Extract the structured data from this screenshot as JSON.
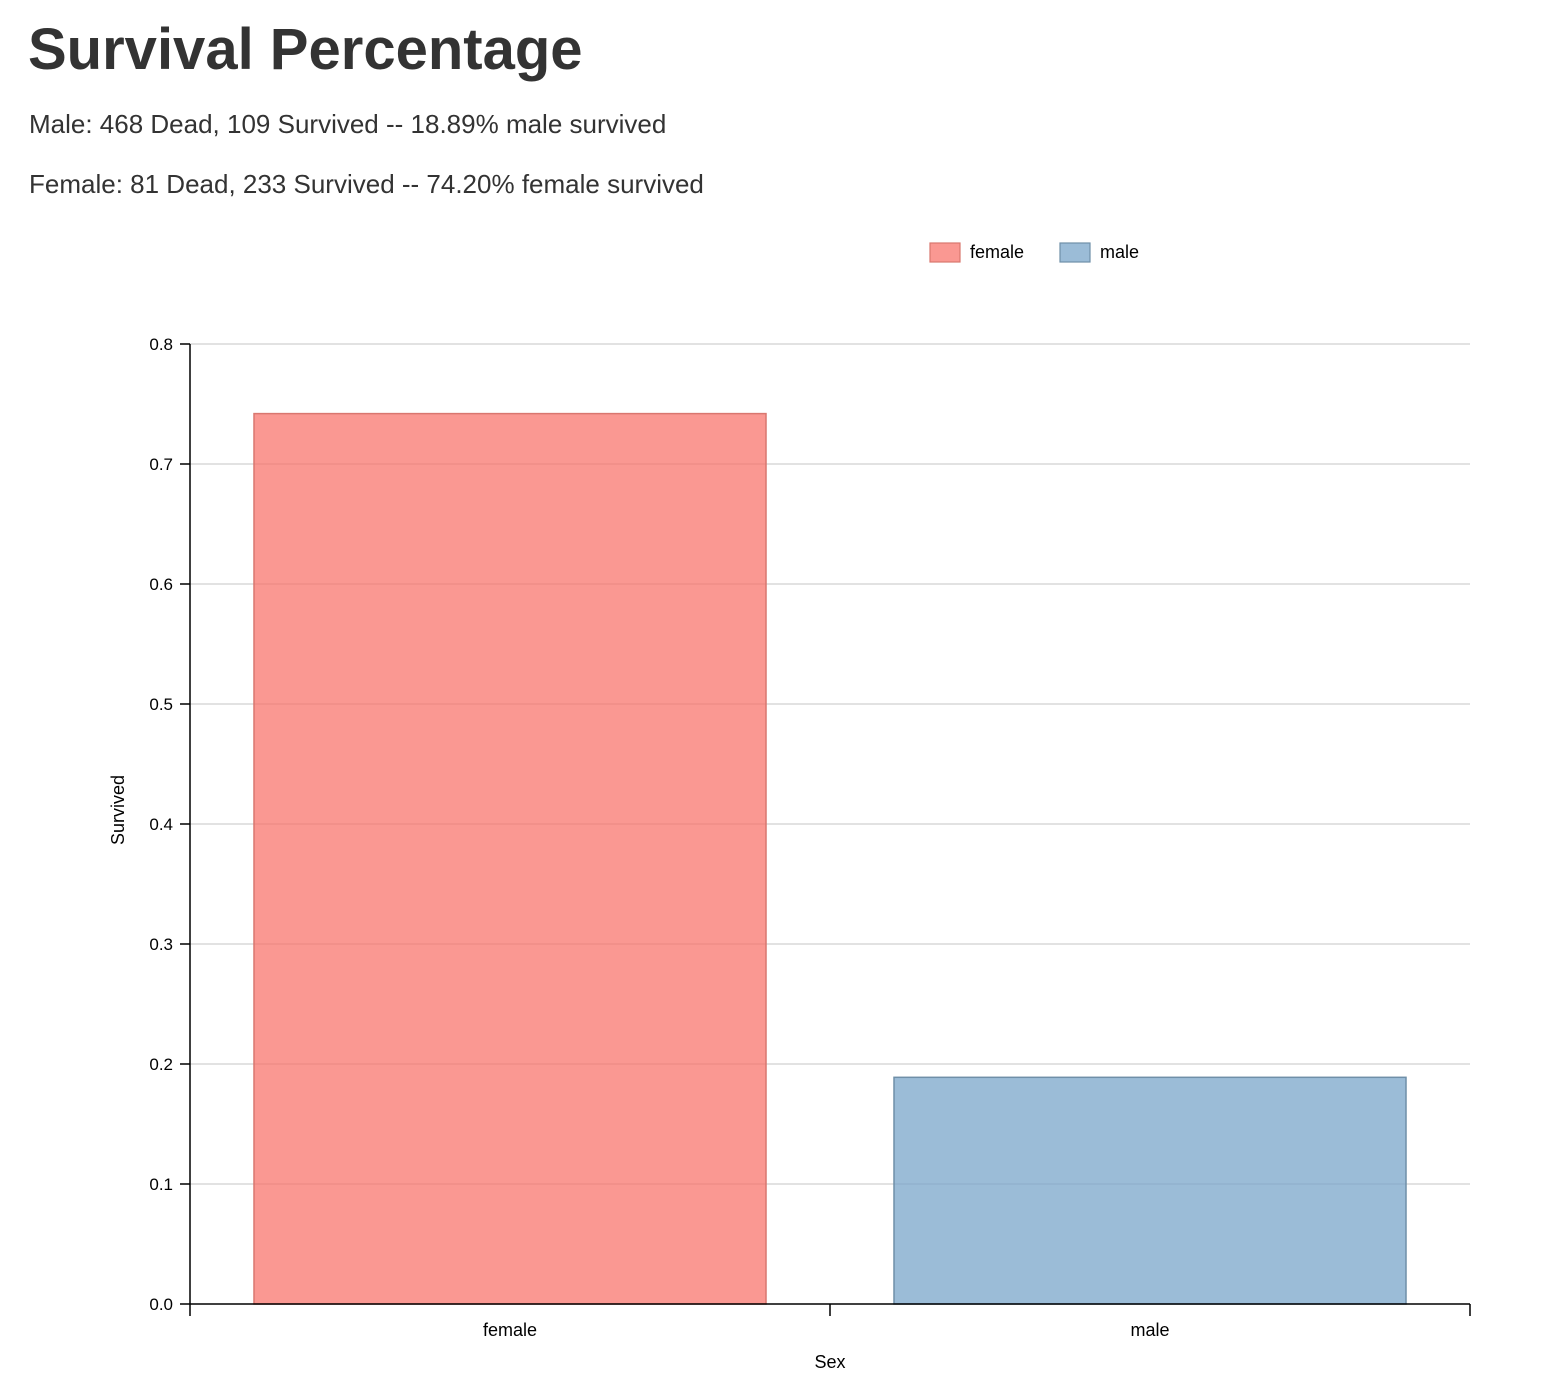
{
  "header": {
    "title": "Survival Percentage",
    "summary_male": "Male: 468 Dead, 109 Survived -- 18.89% male survived",
    "summary_female": "Female: 81 Dead, 233 Survived -- 74.20% female survived"
  },
  "chart_data": {
    "type": "bar",
    "categories": [
      "female",
      "male"
    ],
    "values": [
      0.742,
      0.1889
    ],
    "colors": [
      "#f8766d",
      "#7aa6c9"
    ],
    "stroke_colors": [
      "#d9776f",
      "#6f8fa8"
    ],
    "xlabel": "Sex",
    "ylabel": "Survived",
    "ylim": [
      0,
      0.8
    ],
    "yticks": [
      0.0,
      0.1,
      0.2,
      0.3,
      0.4,
      0.5,
      0.6,
      0.7,
      0.8
    ],
    "ytick_labels": [
      "0.0",
      "0.1",
      "0.2",
      "0.3",
      "0.4",
      "0.5",
      "0.6",
      "0.7",
      "0.8"
    ],
    "grid": true,
    "legend": {
      "placement": "top-right",
      "entries": [
        "female",
        "male"
      ]
    }
  }
}
